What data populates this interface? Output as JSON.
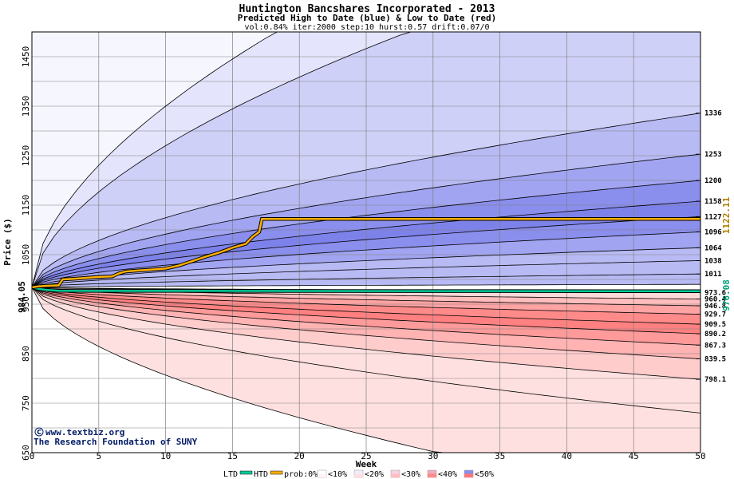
{
  "chart_data": {
    "type": "area",
    "title": "Huntington Bancshares Incorporated - 2013",
    "subtitle": "Predicted High to Date (blue) &  Low to Date (red)",
    "params": "vol:0.84% iter:2000 step:10 hurst:0.57 drift:0.07/0",
    "xlabel": "Week",
    "ylabel": "Price ($)",
    "xlim": [
      0,
      50
    ],
    "ylim": [
      650,
      1500
    ],
    "x_ticks": [
      0,
      5,
      10,
      15,
      20,
      25,
      30,
      35,
      40,
      45,
      50
    ],
    "y_ticks": [
      650,
      750,
      850,
      950,
      1050,
      1150,
      1250,
      1350,
      1450
    ],
    "y_tick_labels": [
      "650",
      "750",
      "850",
      "950",
      "1050",
      "1150",
      "1250",
      "1350",
      "1450"
    ],
    "start_price": 984.05,
    "start_label": "984.05",
    "grid": true,
    "high_bands_end": [
      {
        "value": 1336,
        "label": "1336"
      },
      {
        "value": 1253,
        "label": "1253"
      },
      {
        "value": 1200,
        "label": "1200"
      },
      {
        "value": 1158,
        "label": "1158"
      },
      {
        "value": 1127,
        "label": "1127"
      },
      {
        "value": 1096,
        "label": "1096"
      },
      {
        "value": 1064,
        "label": "1064"
      },
      {
        "value": 1038,
        "label": "1038"
      },
      {
        "value": 1011,
        "label": "1011"
      }
    ],
    "low_bands_end": [
      {
        "value": 973.6,
        "label": "973.6"
      },
      {
        "value": 960.4,
        "label": "960.4"
      },
      {
        "value": 946.8,
        "label": "946.8"
      },
      {
        "value": 929.7,
        "label": "929.7"
      },
      {
        "value": 909.5,
        "label": "909.5"
      },
      {
        "value": 890.2,
        "label": "890.2"
      },
      {
        "value": 867.3,
        "label": "867.3"
      },
      {
        "value": 839.5,
        "label": "839.5"
      },
      {
        "value": 798.1,
        "label": "798.1"
      }
    ],
    "htd_series": {
      "name": "HTD",
      "color": "#ffb000",
      "points": [
        [
          0,
          984.05
        ],
        [
          0.5,
          986
        ],
        [
          1,
          987
        ],
        [
          2,
          988
        ],
        [
          2.3,
          1000
        ],
        [
          3,
          1001
        ],
        [
          4,
          1003
        ],
        [
          5,
          1005
        ],
        [
          6,
          1006
        ],
        [
          6.5,
          1012
        ],
        [
          7,
          1016
        ],
        [
          8,
          1018
        ],
        [
          9,
          1020
        ],
        [
          10,
          1022
        ],
        [
          11,
          1028
        ],
        [
          12,
          1037
        ],
        [
          13,
          1046
        ],
        [
          14,
          1054
        ],
        [
          15,
          1064
        ],
        [
          16,
          1072
        ],
        [
          16.5,
          1086
        ],
        [
          17,
          1096
        ],
        [
          17.2,
          1122.11
        ],
        [
          50,
          1122.11
        ]
      ],
      "end_label": "1122.11"
    },
    "ltd_series": {
      "name": "LTD",
      "color": "#00cc99",
      "points": [
        [
          0,
          984.05
        ],
        [
          0.5,
          981
        ],
        [
          1,
          979
        ],
        [
          2,
          977
        ],
        [
          50,
          976.08
        ]
      ],
      "end_label": "976.08"
    },
    "legend": {
      "ltd": "LTD",
      "htd": "HTD",
      "prob": "prob:0%",
      "items": [
        "<10%",
        "<20%",
        "<30%",
        "<40%",
        "<50%"
      ]
    },
    "colors": {
      "high_bands": [
        "#f6f6ff",
        "#e4e4fc",
        "#cfd0f8",
        "#b8baf4",
        "#a1a4f0",
        "#8a8eec",
        "#7d82ea",
        "#8a8eec",
        "#a1a4f0",
        "#b8baf4"
      ],
      "low_bands": [
        "#fff0f0",
        "#ffd8d8",
        "#ffbdbd",
        "#ffa3a3",
        "#ff8a8a",
        "#ff8080",
        "#ff9a9a",
        "#ffb3b3",
        "#ffcccc",
        "#ffe0e0"
      ],
      "htd_line": "#ffb000",
      "ltd_line": "#00cc99",
      "grid": "#808080"
    }
  },
  "watermark": {
    "site": "www.textbiz.org",
    "org": "The Research Foundation of SUNY"
  }
}
